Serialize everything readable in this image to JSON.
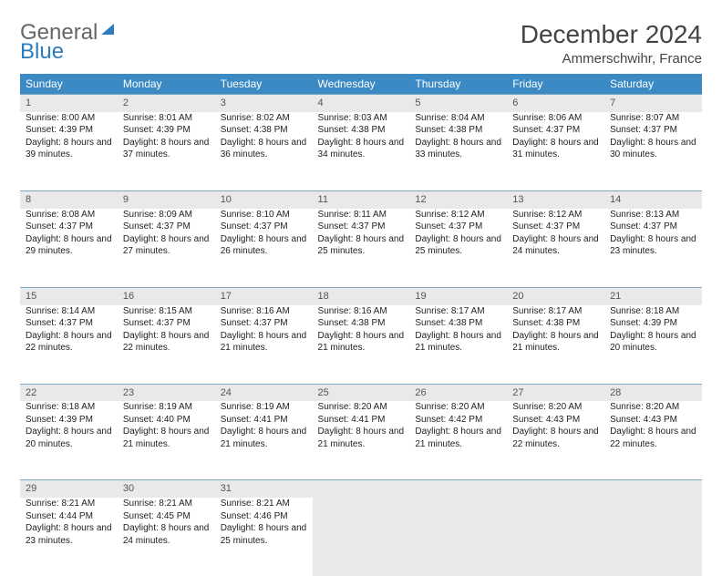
{
  "logo": {
    "part1": "General",
    "part2": "Blue"
  },
  "title": "December 2024",
  "subtitle": "Ammerschwihr, France",
  "weekdays": [
    "Sunday",
    "Monday",
    "Tuesday",
    "Wednesday",
    "Thursday",
    "Friday",
    "Saturday"
  ],
  "colors": {
    "header_bg": "#3b8ac4",
    "header_text": "#ffffff",
    "daynum_bg": "#e9e9e9",
    "rule": "#7aa7c4"
  },
  "weeks": [
    [
      {
        "n": "1",
        "sr": "8:00 AM",
        "ss": "4:39 PM",
        "dl": "8 hours and 39 minutes."
      },
      {
        "n": "2",
        "sr": "8:01 AM",
        "ss": "4:39 PM",
        "dl": "8 hours and 37 minutes."
      },
      {
        "n": "3",
        "sr": "8:02 AM",
        "ss": "4:38 PM",
        "dl": "8 hours and 36 minutes."
      },
      {
        "n": "4",
        "sr": "8:03 AM",
        "ss": "4:38 PM",
        "dl": "8 hours and 34 minutes."
      },
      {
        "n": "5",
        "sr": "8:04 AM",
        "ss": "4:38 PM",
        "dl": "8 hours and 33 minutes."
      },
      {
        "n": "6",
        "sr": "8:06 AM",
        "ss": "4:37 PM",
        "dl": "8 hours and 31 minutes."
      },
      {
        "n": "7",
        "sr": "8:07 AM",
        "ss": "4:37 PM",
        "dl": "8 hours and 30 minutes."
      }
    ],
    [
      {
        "n": "8",
        "sr": "8:08 AM",
        "ss": "4:37 PM",
        "dl": "8 hours and 29 minutes."
      },
      {
        "n": "9",
        "sr": "8:09 AM",
        "ss": "4:37 PM",
        "dl": "8 hours and 27 minutes."
      },
      {
        "n": "10",
        "sr": "8:10 AM",
        "ss": "4:37 PM",
        "dl": "8 hours and 26 minutes."
      },
      {
        "n": "11",
        "sr": "8:11 AM",
        "ss": "4:37 PM",
        "dl": "8 hours and 25 minutes."
      },
      {
        "n": "12",
        "sr": "8:12 AM",
        "ss": "4:37 PM",
        "dl": "8 hours and 25 minutes."
      },
      {
        "n": "13",
        "sr": "8:12 AM",
        "ss": "4:37 PM",
        "dl": "8 hours and 24 minutes."
      },
      {
        "n": "14",
        "sr": "8:13 AM",
        "ss": "4:37 PM",
        "dl": "8 hours and 23 minutes."
      }
    ],
    [
      {
        "n": "15",
        "sr": "8:14 AM",
        "ss": "4:37 PM",
        "dl": "8 hours and 22 minutes."
      },
      {
        "n": "16",
        "sr": "8:15 AM",
        "ss": "4:37 PM",
        "dl": "8 hours and 22 minutes."
      },
      {
        "n": "17",
        "sr": "8:16 AM",
        "ss": "4:37 PM",
        "dl": "8 hours and 21 minutes."
      },
      {
        "n": "18",
        "sr": "8:16 AM",
        "ss": "4:38 PM",
        "dl": "8 hours and 21 minutes."
      },
      {
        "n": "19",
        "sr": "8:17 AM",
        "ss": "4:38 PM",
        "dl": "8 hours and 21 minutes."
      },
      {
        "n": "20",
        "sr": "8:17 AM",
        "ss": "4:38 PM",
        "dl": "8 hours and 21 minutes."
      },
      {
        "n": "21",
        "sr": "8:18 AM",
        "ss": "4:39 PM",
        "dl": "8 hours and 20 minutes."
      }
    ],
    [
      {
        "n": "22",
        "sr": "8:18 AM",
        "ss": "4:39 PM",
        "dl": "8 hours and 20 minutes."
      },
      {
        "n": "23",
        "sr": "8:19 AM",
        "ss": "4:40 PM",
        "dl": "8 hours and 21 minutes."
      },
      {
        "n": "24",
        "sr": "8:19 AM",
        "ss": "4:41 PM",
        "dl": "8 hours and 21 minutes."
      },
      {
        "n": "25",
        "sr": "8:20 AM",
        "ss": "4:41 PM",
        "dl": "8 hours and 21 minutes."
      },
      {
        "n": "26",
        "sr": "8:20 AM",
        "ss": "4:42 PM",
        "dl": "8 hours and 21 minutes."
      },
      {
        "n": "27",
        "sr": "8:20 AM",
        "ss": "4:43 PM",
        "dl": "8 hours and 22 minutes."
      },
      {
        "n": "28",
        "sr": "8:20 AM",
        "ss": "4:43 PM",
        "dl": "8 hours and 22 minutes."
      }
    ],
    [
      {
        "n": "29",
        "sr": "8:21 AM",
        "ss": "4:44 PM",
        "dl": "8 hours and 23 minutes."
      },
      {
        "n": "30",
        "sr": "8:21 AM",
        "ss": "4:45 PM",
        "dl": "8 hours and 24 minutes."
      },
      {
        "n": "31",
        "sr": "8:21 AM",
        "ss": "4:46 PM",
        "dl": "8 hours and 25 minutes."
      },
      null,
      null,
      null,
      null
    ]
  ],
  "labels": {
    "sunrise": "Sunrise: ",
    "sunset": "Sunset: ",
    "daylight": "Daylight: "
  }
}
